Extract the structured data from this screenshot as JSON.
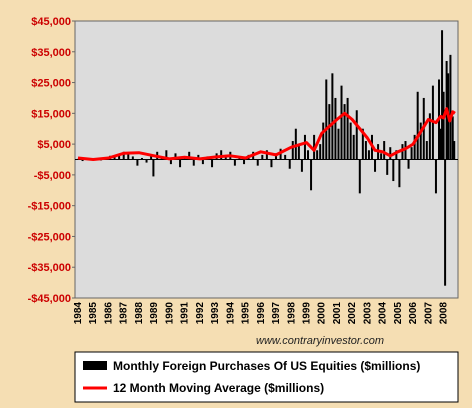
{
  "chart_data": {
    "type": "bar",
    "title": "",
    "xlabel": "",
    "ylabel": "",
    "ylim": [
      -45000,
      45000
    ],
    "yticks": [
      "$45,000",
      "$35,000",
      "$25,000",
      "$15,000",
      "$5,000",
      "-$5,000",
      "-$15,000",
      "-$25,000",
      "-$35,000",
      "-$45,000"
    ],
    "ytick_values": [
      45000,
      35000,
      25000,
      15000,
      5000,
      -5000,
      -15000,
      -25000,
      -35000,
      -45000
    ],
    "xticks": [
      "1984",
      "1985",
      "1986",
      "1987",
      "1988",
      "1989",
      "1990",
      "1991",
      "1992",
      "1993",
      "1994",
      "1995",
      "1996",
      "1997",
      "1998",
      "1999",
      "2000",
      "2001",
      "2002",
      "2003",
      "2004",
      "2005",
      "2006",
      "2007",
      "2008"
    ],
    "x_start": 1984.0,
    "x_end": 2008.75,
    "watermark": "www.contraryinvestor.com",
    "legend": {
      "placement": "bottom",
      "entries": [
        {
          "label": "Monthly Foreign Purchases Of US Equities ($millions)",
          "color": "#000000"
        },
        {
          "label": "12 Month Moving Average ($millions)",
          "color": "#ff0000"
        }
      ]
    },
    "colors": {
      "frame": "#f5deb3",
      "plot_bg": "#dcdcdc",
      "bars": "#000000",
      "line": "#ff0000",
      "ytick": "#cc0000"
    },
    "bar_points": [
      [
        1984.0,
        200
      ],
      [
        1984.3,
        -500
      ],
      [
        1984.6,
        300
      ],
      [
        1984.9,
        -300
      ],
      [
        1985.2,
        400
      ],
      [
        1985.5,
        -200
      ],
      [
        1985.8,
        500
      ],
      [
        1986.1,
        1200
      ],
      [
        1986.4,
        800
      ],
      [
        1986.7,
        1500
      ],
      [
        1987.0,
        2500
      ],
      [
        1987.3,
        2000
      ],
      [
        1987.6,
        1000
      ],
      [
        1987.9,
        -2000
      ],
      [
        1988.2,
        500
      ],
      [
        1988.5,
        -1000
      ],
      [
        1988.8,
        1500
      ],
      [
        1988.95,
        -5500
      ],
      [
        1989.2,
        2500
      ],
      [
        1989.5,
        1000
      ],
      [
        1989.8,
        3000
      ],
      [
        1990.1,
        -1500
      ],
      [
        1990.4,
        2000
      ],
      [
        1990.7,
        -2500
      ],
      [
        1991.0,
        1000
      ],
      [
        1991.3,
        2500
      ],
      [
        1991.6,
        -2000
      ],
      [
        1991.9,
        1500
      ],
      [
        1992.2,
        -1500
      ],
      [
        1992.5,
        1000
      ],
      [
        1992.8,
        -2500
      ],
      [
        1993.1,
        2000
      ],
      [
        1993.4,
        3000
      ],
      [
        1993.7,
        1500
      ],
      [
        1994.0,
        2500
      ],
      [
        1994.3,
        -2000
      ],
      [
        1994.6,
        1000
      ],
      [
        1994.9,
        -1500
      ],
      [
        1995.2,
        1500
      ],
      [
        1995.5,
        2500
      ],
      [
        1995.8,
        -2000
      ],
      [
        1996.1,
        1500
      ],
      [
        1996.4,
        3000
      ],
      [
        1996.7,
        -2500
      ],
      [
        1997.0,
        2000
      ],
      [
        1997.3,
        3500
      ],
      [
        1997.6,
        1500
      ],
      [
        1997.9,
        -3000
      ],
      [
        1998.1,
        6000
      ],
      [
        1998.3,
        10000
      ],
      [
        1998.5,
        5000
      ],
      [
        1998.7,
        -4000
      ],
      [
        1998.9,
        8000
      ],
      [
        1999.1,
        3000
      ],
      [
        1999.3,
        -10000
      ],
      [
        1999.5,
        8000
      ],
      [
        1999.7,
        3000
      ],
      [
        1999.9,
        5000
      ],
      [
        2000.1,
        12000
      ],
      [
        2000.3,
        26000
      ],
      [
        2000.5,
        18000
      ],
      [
        2000.7,
        28000
      ],
      [
        2000.9,
        20000
      ],
      [
        2001.1,
        10000
      ],
      [
        2001.3,
        24000
      ],
      [
        2001.5,
        18000
      ],
      [
        2001.7,
        20000
      ],
      [
        2001.9,
        12000
      ],
      [
        2002.1,
        8000
      ],
      [
        2002.3,
        16000
      ],
      [
        2002.5,
        -11000
      ],
      [
        2002.7,
        10000
      ],
      [
        2002.9,
        6000
      ],
      [
        2003.1,
        3000
      ],
      [
        2003.3,
        8000
      ],
      [
        2003.5,
        -4000
      ],
      [
        2003.7,
        5000
      ],
      [
        2003.9,
        2000
      ],
      [
        2004.1,
        6000
      ],
      [
        2004.3,
        -5000
      ],
      [
        2004.5,
        4000
      ],
      [
        2004.7,
        -7000
      ],
      [
        2004.9,
        3000
      ],
      [
        2005.1,
        -9000
      ],
      [
        2005.3,
        5000
      ],
      [
        2005.5,
        6000
      ],
      [
        2005.7,
        -3000
      ],
      [
        2005.9,
        4000
      ],
      [
        2006.1,
        8000
      ],
      [
        2006.3,
        22000
      ],
      [
        2006.5,
        12000
      ],
      [
        2006.7,
        20000
      ],
      [
        2006.9,
        6000
      ],
      [
        2007.1,
        15000
      ],
      [
        2007.3,
        24000
      ],
      [
        2007.5,
        -11000
      ],
      [
        2007.7,
        26000
      ],
      [
        2007.8,
        10000
      ],
      [
        2007.9,
        42000
      ],
      [
        2008.0,
        22000
      ],
      [
        2008.1,
        -41000
      ],
      [
        2008.2,
        32000
      ],
      [
        2008.3,
        28000
      ],
      [
        2008.45,
        34000
      ],
      [
        2008.6,
        14000
      ],
      [
        2008.7,
        6000
      ]
    ],
    "line_points": [
      [
        1984.0,
        500
      ],
      [
        1985.0,
        0
      ],
      [
        1986.0,
        500
      ],
      [
        1987.0,
        2000
      ],
      [
        1988.0,
        2200
      ],
      [
        1989.0,
        1200
      ],
      [
        1990.0,
        200
      ],
      [
        1991.0,
        700
      ],
      [
        1992.0,
        200
      ],
      [
        1993.0,
        800
      ],
      [
        1994.0,
        1200
      ],
      [
        1995.0,
        500
      ],
      [
        1996.0,
        2500
      ],
      [
        1997.0,
        1500
      ],
      [
        1998.0,
        4000
      ],
      [
        1999.0,
        5500
      ],
      [
        1999.5,
        3000
      ],
      [
        2000.0,
        8500
      ],
      [
        2001.0,
        13000
      ],
      [
        2001.5,
        15000
      ],
      [
        2002.0,
        13000
      ],
      [
        2002.5,
        10000
      ],
      [
        2003.0,
        7000
      ],
      [
        2003.5,
        3000
      ],
      [
        2004.0,
        2500
      ],
      [
        2004.5,
        1200
      ],
      [
        2005.0,
        2500
      ],
      [
        2005.5,
        3500
      ],
      [
        2006.0,
        5000
      ],
      [
        2006.5,
        9000
      ],
      [
        2007.0,
        13000
      ],
      [
        2007.5,
        12000
      ],
      [
        2007.8,
        14000
      ],
      [
        2008.0,
        13500
      ],
      [
        2008.2,
        16500
      ],
      [
        2008.4,
        12500
      ],
      [
        2008.6,
        15500
      ],
      [
        2008.75,
        15000
      ]
    ]
  }
}
